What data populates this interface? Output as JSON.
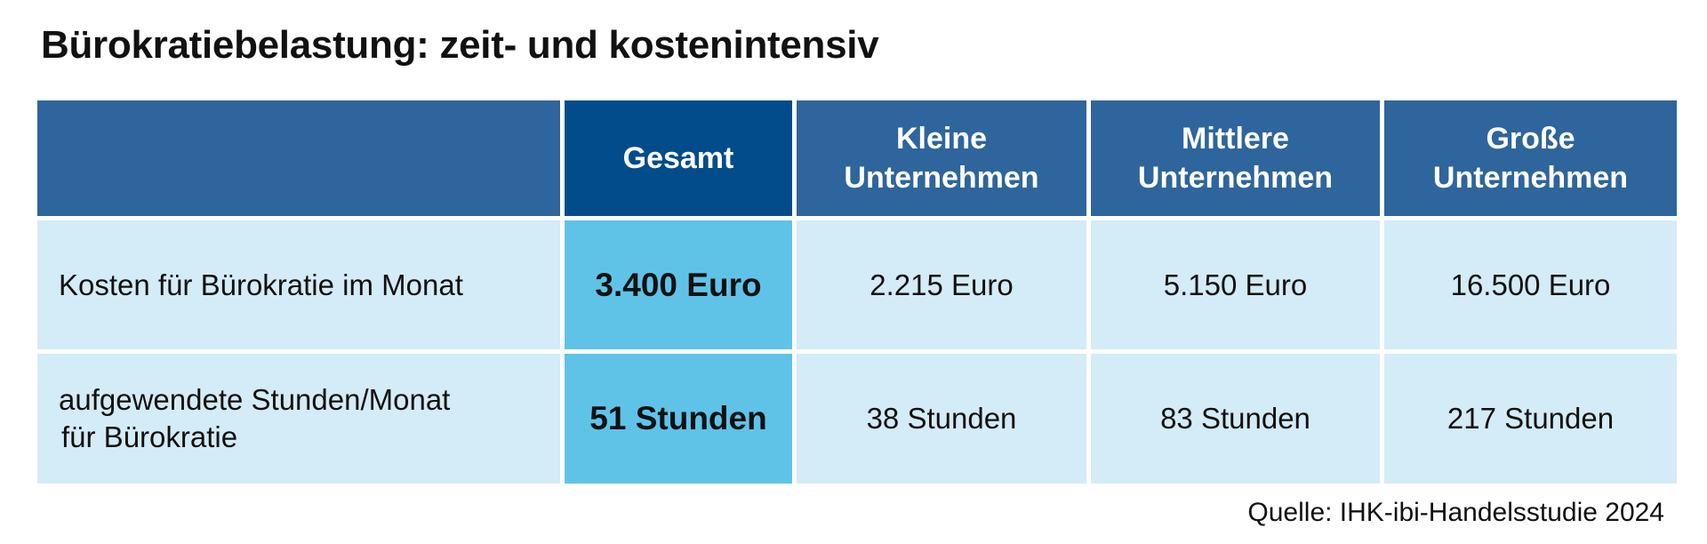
{
  "title": "Bürokratiebelastung: zeit- und kostenintensiv",
  "colors": {
    "header": "#2e659c",
    "header_total": "#034c8c",
    "cell": "#d4ebf8",
    "cell_total": "#5fc3e8"
  },
  "chart_data": {
    "type": "table",
    "title": "Bürokratiebelastung: zeit- und kostenintensiv",
    "columns": [
      {
        "line1": "Gesamt",
        "line2": ""
      },
      {
        "line1": "Kleine",
        "line2": "Unternehmen"
      },
      {
        "line1": "Mittlere",
        "line2": "Unternehmen"
      },
      {
        "line1": "Große",
        "line2": "Unternehmen"
      }
    ],
    "rows": [
      {
        "label_line1": "Kosten für Bürokratie im Monat",
        "label_line2": "",
        "cells": [
          "3.400 Euro",
          "2.215 Euro",
          "5.150 Euro",
          "16.500 Euro"
        ],
        "values": [
          3400,
          2215,
          5150,
          16500
        ],
        "unit": "Euro"
      },
      {
        "label_line1": "aufgewendete Stunden/Monat",
        "label_line2": "für Bürokratie",
        "cells": [
          "51 Stunden",
          "38 Stunden",
          "83 Stunden",
          "217 Stunden"
        ],
        "values": [
          51,
          38,
          83,
          217
        ],
        "unit": "Stunden"
      }
    ]
  },
  "source": "Quelle: IHK-ibi-Handelsstudie 2024"
}
